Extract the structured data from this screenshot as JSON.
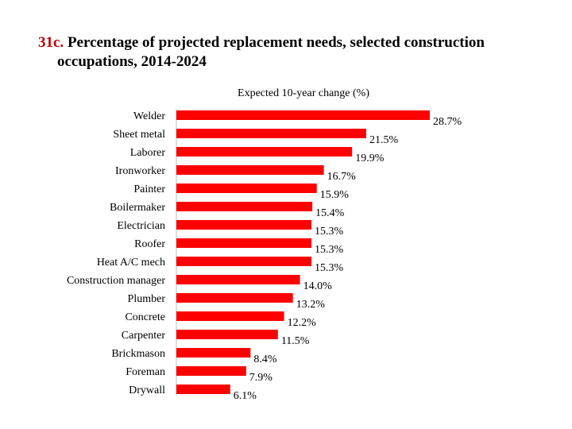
{
  "title": {
    "number": "31c.",
    "line1": "Percentage of projected replacement needs, selected construction",
    "line2": "occupations, 2014-2024"
  },
  "chart_data": {
    "type": "bar",
    "orientation": "horizontal",
    "subtitle": "Expected 10-year change (%)",
    "categories": [
      "Welder",
      "Sheet metal",
      "Laborer",
      "Ironworker",
      "Painter",
      "Boilermaker",
      "Electrician",
      "Roofer",
      "Heat A/C mech",
      "Construction manager",
      "Plumber",
      "Concrete",
      "Carpenter",
      "Brickmason",
      "Foreman",
      "Drywall"
    ],
    "values": [
      28.7,
      21.5,
      19.9,
      16.7,
      15.9,
      15.4,
      15.3,
      15.3,
      15.3,
      14.0,
      13.2,
      12.2,
      11.5,
      8.4,
      7.9,
      6.1
    ],
    "labels": [
      "28.7%",
      "21.5%",
      "19.9%",
      "16.7%",
      "15.9%",
      "15.4%",
      "15.3%",
      "15.3%",
      "15.3%",
      "14.0%",
      "13.2%",
      "12.2%",
      "11.5%",
      "8.4%",
      "7.9%",
      "6.1%"
    ],
    "bar_color": "#ff0000",
    "xlim": [
      0,
      28.7
    ],
    "grid": false,
    "legend": "none"
  }
}
